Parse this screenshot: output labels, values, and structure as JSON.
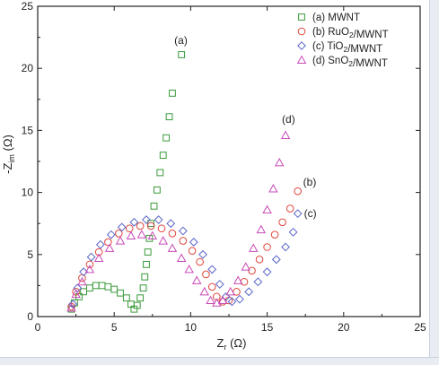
{
  "chart_data": {
    "type": "scatter",
    "xlabel": "Z",
    "xlabel_sub": "r",
    "xlabel_unit": "(Ω)",
    "ylabel": "-Z",
    "ylabel_sub": "im",
    "ylabel_unit": "(Ω)",
    "xlim": [
      0,
      25
    ],
    "ylim": [
      0,
      25
    ],
    "xticks": [
      "0",
      "5",
      "10",
      "15",
      "20",
      "25"
    ],
    "yticks": [
      "0",
      "5",
      "10",
      "15",
      "20",
      "25"
    ],
    "grid": false,
    "legend_position": "top-right",
    "series": [
      {
        "name": "(a) MWNT",
        "legend_parts": [
          [
            "(a) MWNT",
            ""
          ]
        ],
        "annotation": "(a)",
        "marker": "square",
        "color": "#3a9a3a",
        "points": [
          [
            2.2,
            0.6
          ],
          [
            2.4,
            1.1
          ],
          [
            2.7,
            1.6
          ],
          [
            3.0,
            2.0
          ],
          [
            3.4,
            2.3
          ],
          [
            3.8,
            2.5
          ],
          [
            4.2,
            2.5
          ],
          [
            4.6,
            2.4
          ],
          [
            5.0,
            2.2
          ],
          [
            5.4,
            1.9
          ],
          [
            5.8,
            1.5
          ],
          [
            6.1,
            1.0
          ],
          [
            6.3,
            0.6
          ],
          [
            6.5,
            0.9
          ],
          [
            6.7,
            1.5
          ],
          [
            6.9,
            2.3
          ],
          [
            7.0,
            3.2
          ],
          [
            7.1,
            4.2
          ],
          [
            7.2,
            5.2
          ],
          [
            7.3,
            6.3
          ],
          [
            7.4,
            7.5
          ],
          [
            7.6,
            8.9
          ],
          [
            7.8,
            10.2
          ],
          [
            8.0,
            11.6
          ],
          [
            8.2,
            13.0
          ],
          [
            8.4,
            14.4
          ],
          [
            8.6,
            16.1
          ],
          [
            8.8,
            18.0
          ],
          [
            9.4,
            21.1
          ]
        ]
      },
      {
        "name": "(b) RuO2/MWNT",
        "legend_parts": [
          [
            "(b) RuO",
            ""
          ],
          [
            "2",
            "sub"
          ],
          [
            "/MWNT",
            ""
          ]
        ],
        "annotation": "(b)",
        "marker": "circle",
        "color": "#e0463c",
        "points": [
          [
            2.2,
            0.8
          ],
          [
            2.5,
            2.0
          ],
          [
            2.9,
            3.1
          ],
          [
            3.4,
            4.2
          ],
          [
            4.0,
            5.2
          ],
          [
            4.6,
            6.0
          ],
          [
            5.3,
            6.7
          ],
          [
            6.0,
            7.1
          ],
          [
            6.7,
            7.3
          ],
          [
            7.4,
            7.3
          ],
          [
            8.1,
            7.1
          ],
          [
            8.8,
            6.7
          ],
          [
            9.5,
            6.1
          ],
          [
            10.1,
            5.3
          ],
          [
            10.6,
            4.4
          ],
          [
            11.0,
            3.4
          ],
          [
            11.4,
            2.4
          ],
          [
            11.7,
            1.6
          ],
          [
            12.1,
            1.2
          ],
          [
            12.5,
            1.3
          ],
          [
            13.0,
            2.0
          ],
          [
            13.5,
            2.8
          ],
          [
            14.0,
            3.7
          ],
          [
            14.5,
            4.6
          ],
          [
            15.0,
            5.6
          ],
          [
            15.5,
            6.6
          ],
          [
            16.0,
            7.6
          ],
          [
            16.5,
            8.7
          ],
          [
            17.0,
            10.1
          ]
        ]
      },
      {
        "name": "(c) TiO2/MWNT",
        "legend_parts": [
          [
            "(c) TiO",
            ""
          ],
          [
            "2",
            "sub"
          ],
          [
            "/MWNT",
            ""
          ]
        ],
        "annotation": "(c)",
        "marker": "diamond",
        "color": "#5a66c8",
        "points": [
          [
            2.3,
            1.0
          ],
          [
            2.6,
            2.3
          ],
          [
            3.0,
            3.6
          ],
          [
            3.5,
            4.8
          ],
          [
            4.1,
            5.8
          ],
          [
            4.8,
            6.6
          ],
          [
            5.5,
            7.2
          ],
          [
            6.3,
            7.6
          ],
          [
            7.1,
            7.8
          ],
          [
            7.9,
            7.8
          ],
          [
            8.7,
            7.5
          ],
          [
            9.5,
            6.9
          ],
          [
            10.2,
            6.0
          ],
          [
            10.8,
            5.0
          ],
          [
            11.4,
            3.8
          ],
          [
            11.9,
            2.6
          ],
          [
            12.3,
            1.6
          ],
          [
            12.7,
            1.2
          ],
          [
            13.2,
            1.4
          ],
          [
            13.8,
            2.0
          ],
          [
            14.4,
            2.8
          ],
          [
            15.0,
            3.6
          ],
          [
            15.6,
            4.6
          ],
          [
            16.2,
            5.6
          ],
          [
            16.7,
            6.8
          ],
          [
            17.0,
            8.3
          ]
        ]
      },
      {
        "name": "(d) SnO2/MWNT",
        "legend_parts": [
          [
            "(d) SnO",
            ""
          ],
          [
            "2",
            "sub"
          ],
          [
            "/MWNT",
            ""
          ]
        ],
        "annotation": "(d)",
        "marker": "triangle",
        "color": "#c84ab8",
        "points": [
          [
            2.2,
            0.7
          ],
          [
            2.5,
            1.8
          ],
          [
            2.9,
            2.8
          ],
          [
            3.4,
            3.8
          ],
          [
            4.0,
            4.7
          ],
          [
            4.7,
            5.5
          ],
          [
            5.4,
            6.1
          ],
          [
            6.1,
            6.5
          ],
          [
            6.8,
            6.6
          ],
          [
            7.5,
            6.5
          ],
          [
            8.2,
            6.1
          ],
          [
            8.8,
            5.5
          ],
          [
            9.4,
            4.7
          ],
          [
            9.9,
            3.8
          ],
          [
            10.4,
            2.9
          ],
          [
            10.9,
            2.0
          ],
          [
            11.3,
            1.3
          ],
          [
            11.7,
            1.1
          ],
          [
            12.1,
            1.3
          ],
          [
            12.6,
            2.0
          ],
          [
            13.1,
            2.9
          ],
          [
            13.6,
            4.0
          ],
          [
            14.1,
            5.5
          ],
          [
            14.6,
            7.0
          ],
          [
            15.0,
            8.6
          ],
          [
            15.4,
            10.3
          ],
          [
            15.8,
            12.4
          ],
          [
            16.2,
            14.6
          ]
        ]
      }
    ]
  }
}
